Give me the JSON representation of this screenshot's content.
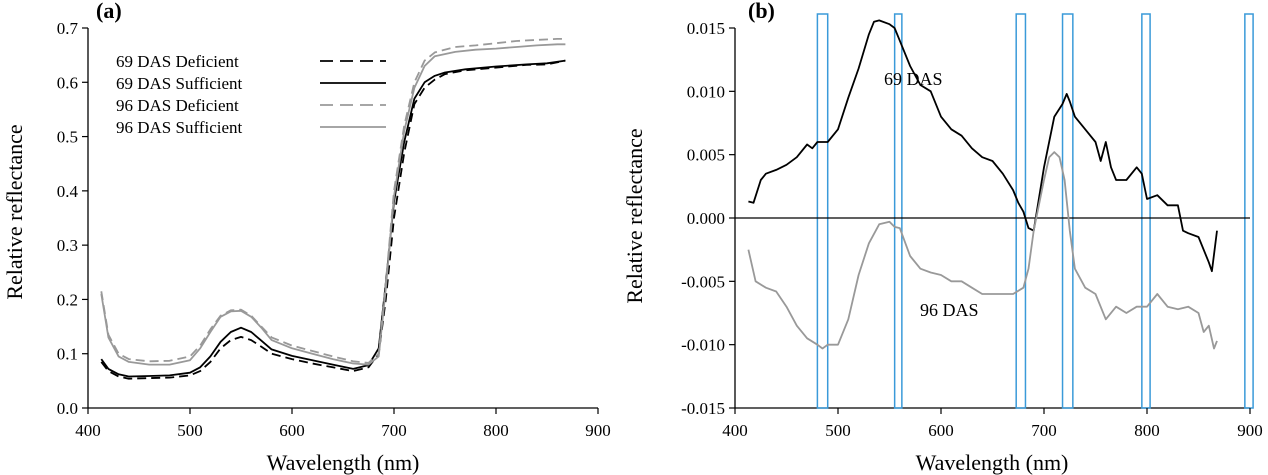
{
  "chart_data": [
    {
      "panel_label": "(a)",
      "type": "line",
      "xlabel": "Wavelength (nm)",
      "ylabel": "Relative reflectance",
      "xlim": [
        400,
        900
      ],
      "ylim": [
        0.0,
        0.7
      ],
      "xticks": [
        400,
        500,
        600,
        700,
        800,
        900
      ],
      "yticks": [
        0.0,
        0.1,
        0.2,
        0.3,
        0.4,
        0.5,
        0.6,
        0.7
      ],
      "ytick_labels": [
        "0.0",
        "0.1",
        "0.2",
        "0.3",
        "0.4",
        "0.5",
        "0.6",
        "0.7"
      ],
      "legend_position": "top-left",
      "series": [
        {
          "name": "69 DAS Deficient",
          "color": "#000000",
          "style": "dashed",
          "x": [
            413,
            420,
            430,
            440,
            460,
            480,
            500,
            510,
            520,
            530,
            540,
            550,
            560,
            570,
            580,
            600,
            620,
            640,
            660,
            675,
            685,
            692,
            700,
            710,
            720,
            730,
            740,
            750,
            770,
            800,
            830,
            850,
            868
          ],
          "y": [
            0.085,
            0.068,
            0.058,
            0.054,
            0.055,
            0.056,
            0.06,
            0.068,
            0.085,
            0.11,
            0.125,
            0.131,
            0.125,
            0.113,
            0.1,
            0.09,
            0.082,
            0.075,
            0.068,
            0.075,
            0.1,
            0.2,
            0.35,
            0.47,
            0.56,
            0.59,
            0.605,
            0.615,
            0.622,
            0.627,
            0.632,
            0.633,
            0.64
          ]
        },
        {
          "name": "69 DAS Sufficient",
          "color": "#000000",
          "style": "solid",
          "x": [
            413,
            420,
            430,
            440,
            460,
            480,
            500,
            510,
            520,
            530,
            540,
            550,
            560,
            570,
            580,
            600,
            620,
            640,
            660,
            675,
            685,
            692,
            700,
            710,
            720,
            730,
            740,
            750,
            770,
            800,
            830,
            850,
            868
          ],
          "y": [
            0.09,
            0.072,
            0.062,
            0.058,
            0.059,
            0.06,
            0.065,
            0.075,
            0.095,
            0.122,
            0.14,
            0.148,
            0.14,
            0.124,
            0.108,
            0.096,
            0.088,
            0.08,
            0.072,
            0.079,
            0.11,
            0.23,
            0.38,
            0.49,
            0.57,
            0.6,
            0.612,
            0.618,
            0.624,
            0.629,
            0.633,
            0.635,
            0.64
          ]
        },
        {
          "name": "96 DAS Deficient",
          "color": "#999999",
          "style": "dashed",
          "x": [
            413,
            420,
            430,
            440,
            460,
            480,
            500,
            510,
            520,
            530,
            540,
            550,
            560,
            570,
            580,
            600,
            620,
            640,
            660,
            675,
            685,
            692,
            700,
            710,
            720,
            730,
            740,
            760,
            780,
            800,
            820,
            840,
            860,
            868
          ],
          "y": [
            0.215,
            0.135,
            0.1,
            0.09,
            0.086,
            0.087,
            0.095,
            0.115,
            0.145,
            0.17,
            0.18,
            0.181,
            0.17,
            0.15,
            0.13,
            0.115,
            0.105,
            0.095,
            0.086,
            0.083,
            0.1,
            0.23,
            0.4,
            0.52,
            0.6,
            0.64,
            0.655,
            0.665,
            0.668,
            0.672,
            0.676,
            0.678,
            0.68,
            0.68
          ]
        },
        {
          "name": "96 DAS Sufficient",
          "color": "#999999",
          "style": "solid",
          "x": [
            413,
            420,
            430,
            440,
            460,
            480,
            500,
            510,
            520,
            530,
            540,
            550,
            560,
            570,
            580,
            600,
            620,
            640,
            660,
            675,
            685,
            692,
            700,
            710,
            720,
            730,
            740,
            760,
            780,
            800,
            820,
            840,
            860,
            868
          ],
          "y": [
            0.21,
            0.13,
            0.095,
            0.085,
            0.08,
            0.08,
            0.088,
            0.11,
            0.14,
            0.168,
            0.178,
            0.179,
            0.168,
            0.148,
            0.125,
            0.11,
            0.1,
            0.09,
            0.082,
            0.08,
            0.095,
            0.22,
            0.39,
            0.51,
            0.59,
            0.63,
            0.648,
            0.656,
            0.66,
            0.662,
            0.665,
            0.668,
            0.67,
            0.67
          ]
        }
      ]
    },
    {
      "panel_label": "(b)",
      "type": "line",
      "xlabel": "Wavelength (nm)",
      "ylabel": "Relative reflectance",
      "xlim": [
        400,
        900
      ],
      "ylim": [
        -0.015,
        0.015
      ],
      "xticks": [
        400,
        500,
        600,
        700,
        800,
        900
      ],
      "yticks": [
        -0.015,
        -0.01,
        -0.005,
        0.0,
        0.005,
        0.01,
        0.015
      ],
      "ytick_labels": [
        "-0.015",
        "-0.010",
        "-0.005",
        "0.000",
        "0.005",
        "0.010",
        "0.015"
      ],
      "zero_line": true,
      "highlight_bands": [
        [
          480,
          490
        ],
        [
          555,
          562
        ],
        [
          673,
          682
        ],
        [
          718,
          728
        ],
        [
          795,
          803
        ],
        [
          895,
          903
        ]
      ],
      "highlight_color": "#3a9ad9",
      "annotations": [
        "69 DAS",
        "96 DAS"
      ],
      "series": [
        {
          "name": "69 DAS",
          "color": "#000000",
          "style": "solid",
          "x": [
            413,
            418,
            425,
            430,
            440,
            450,
            460,
            470,
            475,
            480,
            490,
            500,
            510,
            520,
            530,
            535,
            540,
            550,
            555,
            560,
            570,
            580,
            590,
            600,
            610,
            620,
            630,
            640,
            650,
            660,
            670,
            675,
            680,
            685,
            690,
            700,
            710,
            718,
            722,
            725,
            730,
            740,
            750,
            755,
            760,
            765,
            770,
            780,
            790,
            795,
            800,
            810,
            820,
            830,
            835,
            840,
            850,
            860,
            863,
            868
          ],
          "y": [
            0.0013,
            0.0012,
            0.003,
            0.0035,
            0.0038,
            0.0042,
            0.0048,
            0.0058,
            0.0055,
            0.006,
            0.006,
            0.007,
            0.0095,
            0.0118,
            0.0145,
            0.0155,
            0.0156,
            0.0153,
            0.015,
            0.014,
            0.012,
            0.0105,
            0.01,
            0.008,
            0.007,
            0.0065,
            0.0055,
            0.0048,
            0.0045,
            0.0035,
            0.0022,
            0.0012,
            0.0005,
            -0.0008,
            -0.001,
            0.004,
            0.008,
            0.009,
            0.0098,
            0.0092,
            0.008,
            0.007,
            0.006,
            0.0045,
            0.006,
            0.004,
            0.003,
            0.003,
            0.004,
            0.0035,
            0.0015,
            0.0018,
            0.001,
            0.001,
            -0.001,
            -0.0012,
            -0.0015,
            -0.0035,
            -0.0042,
            -0.001
          ]
        },
        {
          "name": "96 DAS",
          "color": "#999999",
          "style": "solid",
          "x": [
            413,
            420,
            430,
            440,
            450,
            460,
            470,
            480,
            485,
            490,
            500,
            510,
            520,
            530,
            540,
            550,
            555,
            560,
            570,
            580,
            590,
            600,
            610,
            620,
            630,
            640,
            650,
            660,
            670,
            680,
            685,
            690,
            700,
            705,
            710,
            715,
            720,
            725,
            730,
            740,
            750,
            760,
            770,
            780,
            790,
            800,
            810,
            820,
            830,
            840,
            850,
            855,
            860,
            865,
            868
          ],
          "y": [
            -0.0025,
            -0.005,
            -0.0055,
            -0.0058,
            -0.007,
            -0.0085,
            -0.0095,
            -0.01,
            -0.0103,
            -0.01,
            -0.01,
            -0.008,
            -0.0045,
            -0.002,
            -0.0005,
            -0.0003,
            -0.0007,
            -0.0008,
            -0.003,
            -0.004,
            -0.0043,
            -0.0045,
            -0.005,
            -0.005,
            -0.0055,
            -0.006,
            -0.006,
            -0.006,
            -0.006,
            -0.0055,
            -0.004,
            -0.001,
            0.003,
            0.0048,
            0.0052,
            0.0048,
            0.003,
            -0.001,
            -0.004,
            -0.0055,
            -0.006,
            -0.008,
            -0.007,
            -0.0075,
            -0.007,
            -0.007,
            -0.006,
            -0.007,
            -0.0072,
            -0.007,
            -0.0075,
            -0.009,
            -0.0085,
            -0.0103,
            -0.0097
          ]
        }
      ]
    }
  ]
}
